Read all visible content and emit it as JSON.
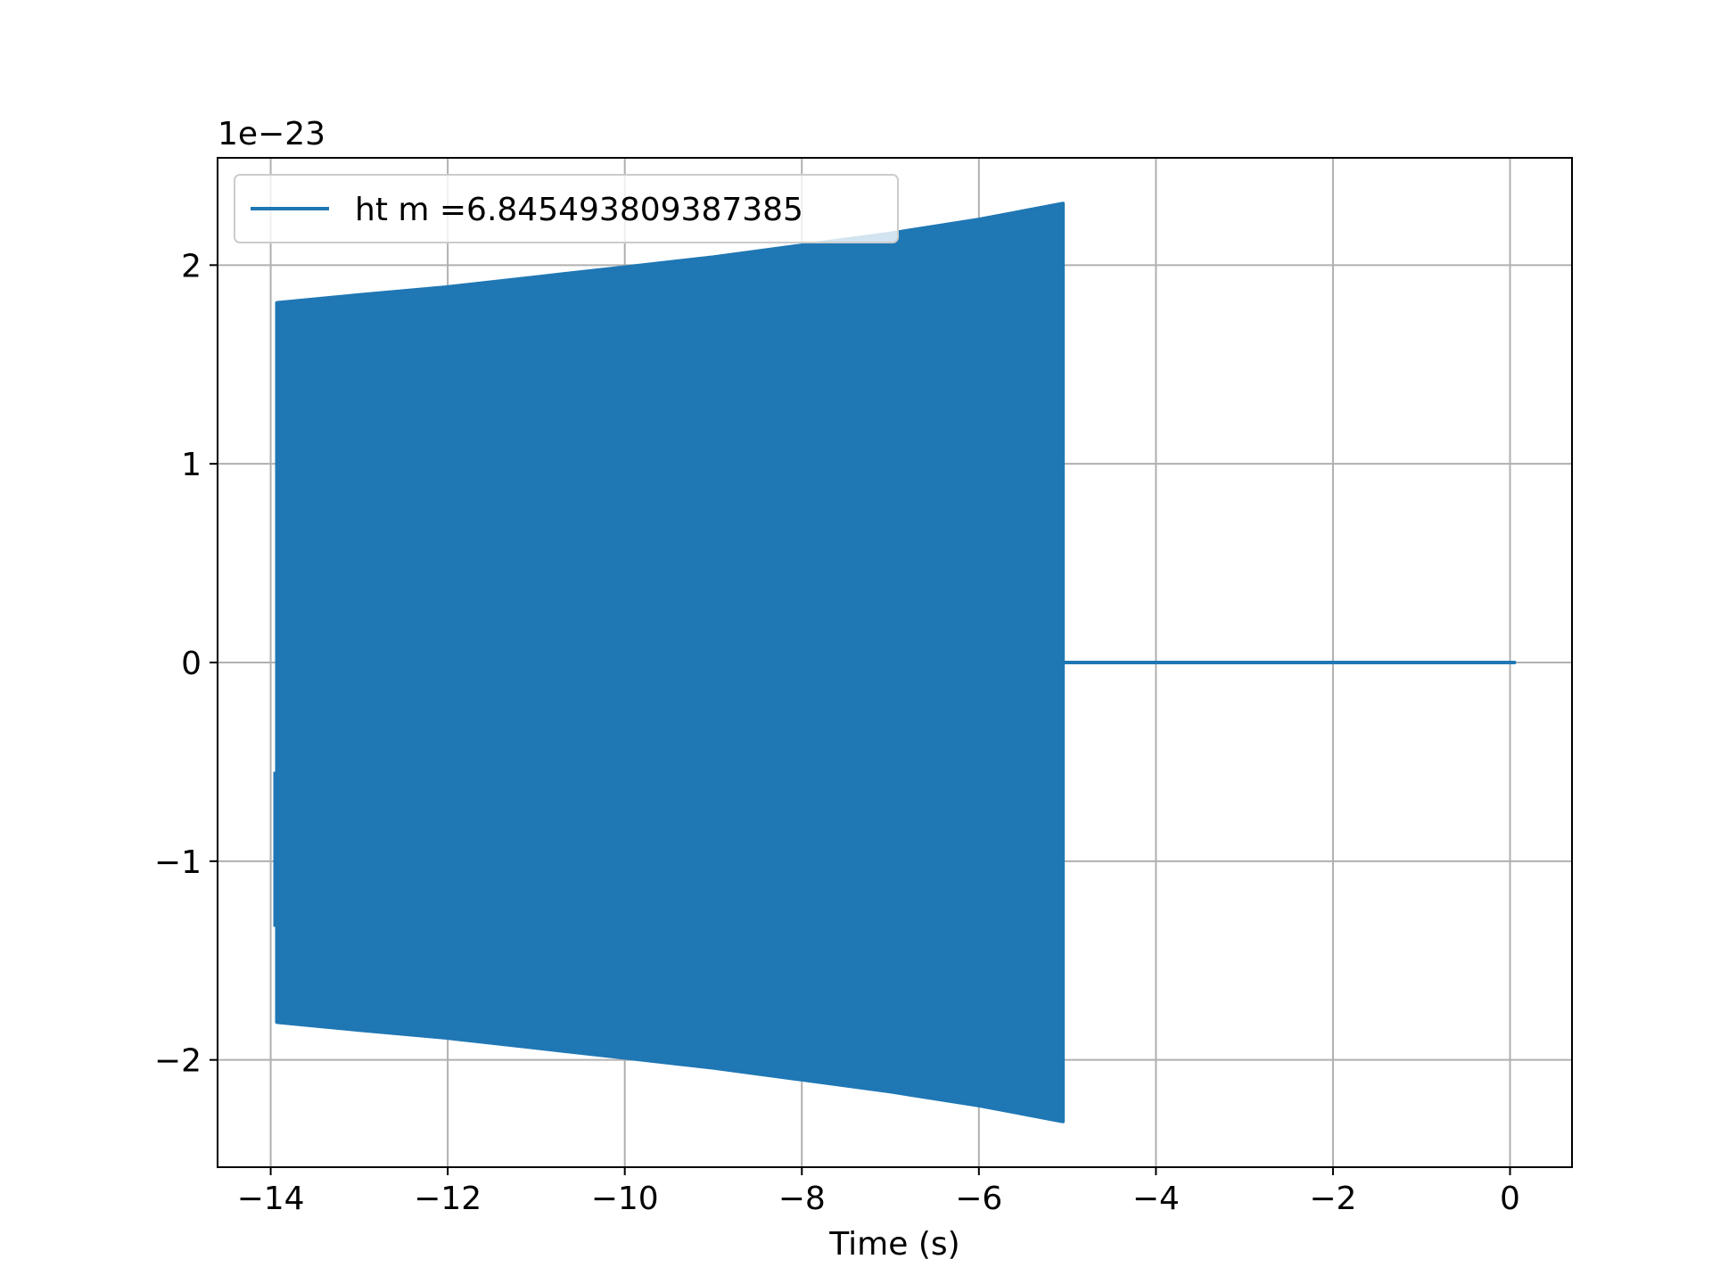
{
  "chart_data": {
    "type": "line",
    "title": "",
    "xlabel": "Time (s)",
    "ylabel": "",
    "y_offset_text": "1e−23",
    "xlim": [
      -14.6,
      0.7
    ],
    "ylim": [
      -2.54,
      2.54
    ],
    "xticks": [
      -14,
      -12,
      -10,
      -8,
      -6,
      -4,
      -2,
      0
    ],
    "xtick_labels": [
      "−14",
      "−12",
      "−10",
      "−8",
      "−6",
      "−4",
      "−2",
      "0"
    ],
    "yticks": [
      -2,
      -1,
      0,
      1,
      2
    ],
    "ytick_labels": [
      "−2",
      "−1",
      "0",
      "1",
      "2"
    ],
    "grid": true,
    "legend_position": "upper-left",
    "series": [
      {
        "name": "ht m =6.845493809387385",
        "color": "#1f77b4",
        "description": "oscillating strain with growing amplitude, then zero",
        "envelope": {
          "x": [
            -13.93,
            -13,
            -12,
            -11,
            -10,
            -9,
            -8,
            -7,
            -6,
            -5.05
          ],
          "upper": [
            1.81,
            1.85,
            1.89,
            1.94,
            1.99,
            2.04,
            2.1,
            2.16,
            2.23,
            2.31
          ],
          "lower": [
            -1.81,
            -1.85,
            -1.89,
            -1.94,
            -1.99,
            -2.04,
            -2.1,
            -2.16,
            -2.23,
            -2.31
          ]
        },
        "start_segment": {
          "x": -13.95,
          "y_min": -1.33,
          "y_max": -0.55
        },
        "zero_segment": {
          "x": [
            -5.05,
            0.05
          ],
          "y": 0
        }
      }
    ]
  }
}
